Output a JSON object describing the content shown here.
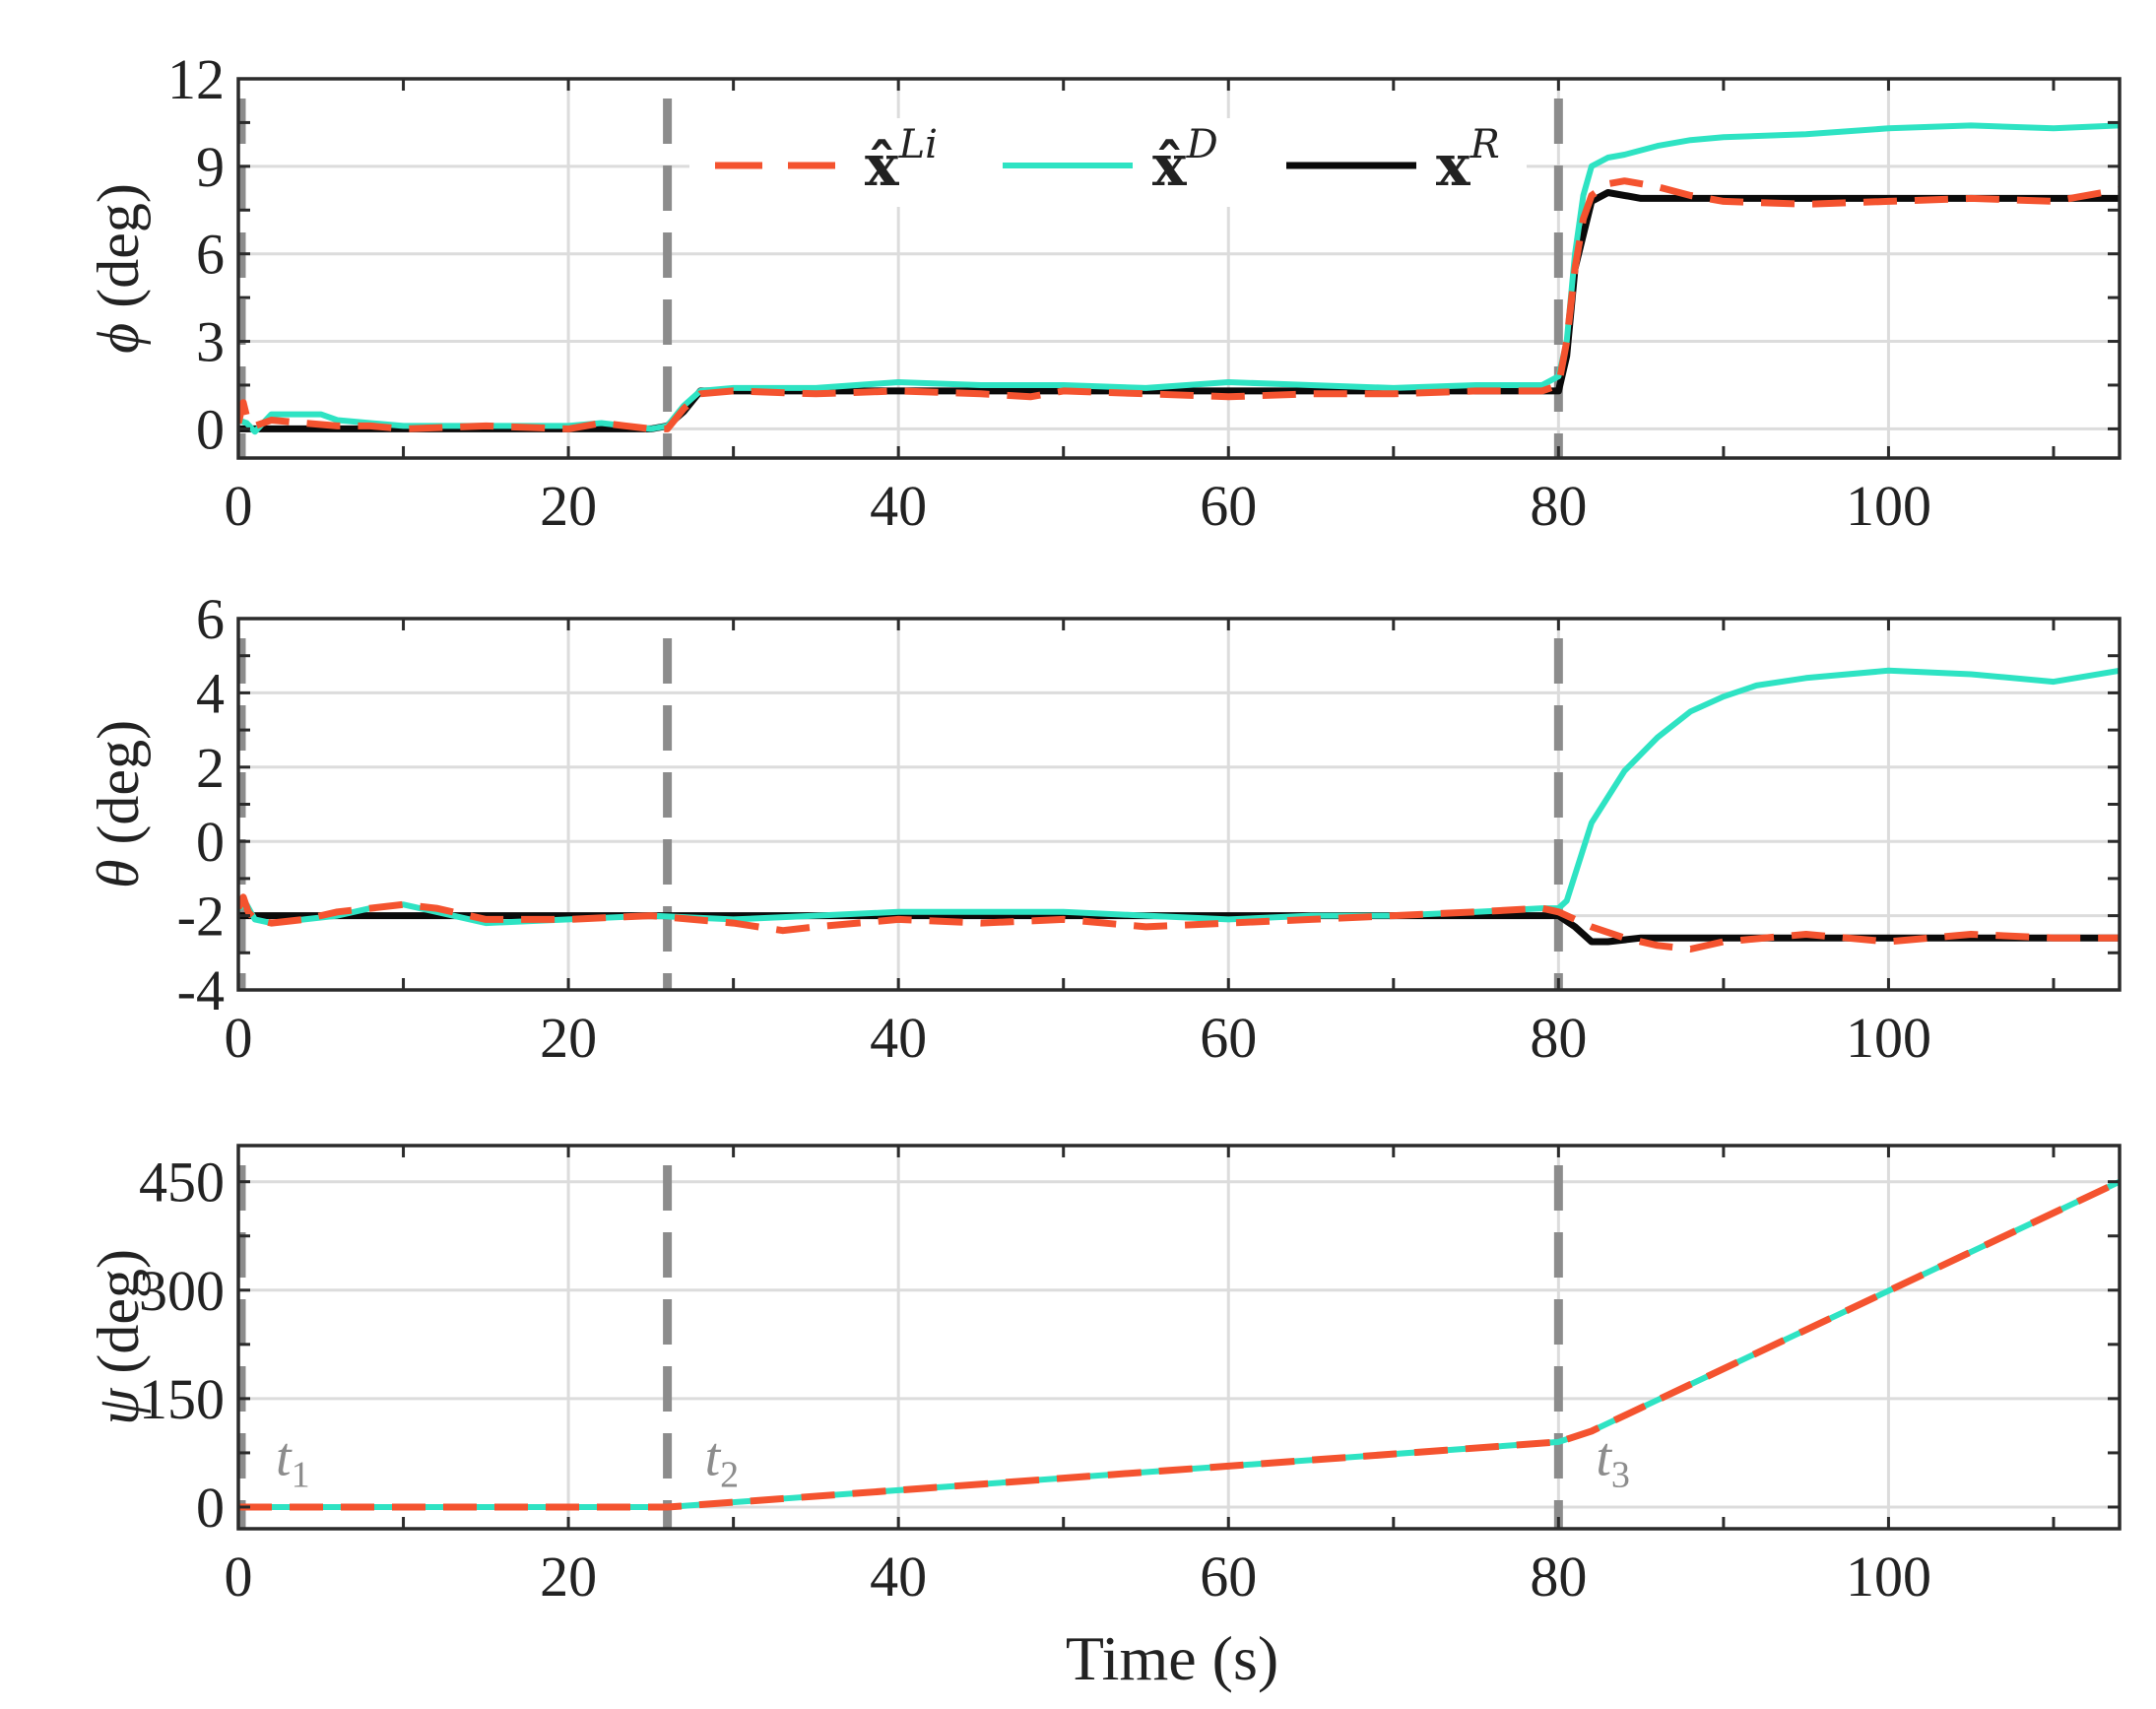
{
  "chart_data": [
    {
      "type": "line",
      "panel": "top",
      "ylabel_symbol": "ϕ",
      "ylabel_unit": "(deg)",
      "xlabel": "",
      "xlim": [
        0,
        114
      ],
      "ylim": [
        -1,
        12
      ],
      "xticks": [
        "0",
        "20",
        "40",
        "60",
        "80",
        "100"
      ],
      "xtick_values": [
        0,
        20,
        40,
        60,
        80,
        100
      ],
      "yticks": [
        "0",
        "3",
        "6",
        "9",
        "12"
      ],
      "ytick_values": [
        0,
        3,
        6,
        9,
        12
      ],
      "grid": true,
      "legend": {
        "placement": "top-center",
        "entries": [
          {
            "base": "x̂",
            "sup": "Li",
            "series": "xLi"
          },
          {
            "base": "x̂",
            "sup": "D",
            "series": "xD"
          },
          {
            "base": "x",
            "sup": "R",
            "series": "xR"
          }
        ]
      },
      "series": [
        {
          "name": "xR",
          "label": "x^R",
          "x": [
            0,
            25,
            26,
            27,
            28,
            80,
            80.5,
            81,
            82,
            83,
            85,
            90,
            114
          ],
          "y": [
            0,
            0,
            0.1,
            0.6,
            1.3,
            1.3,
            2.5,
            5.5,
            7.8,
            8.1,
            7.9,
            7.9,
            7.9
          ]
        },
        {
          "name": "xD",
          "label": "x̂^D",
          "x": [
            0,
            0.5,
            1,
            2,
            3,
            5,
            6,
            8,
            10,
            15,
            20,
            22,
            25,
            26,
            27,
            28,
            30,
            35,
            40,
            45,
            50,
            55,
            60,
            65,
            70,
            75,
            79,
            80,
            80.5,
            81,
            81.5,
            82,
            83,
            84,
            86,
            88,
            90,
            95,
            100,
            105,
            110,
            114
          ],
          "y": [
            0.3,
            0.2,
            -0.1,
            0.5,
            0.5,
            0.5,
            0.3,
            0.2,
            0.1,
            0.1,
            0.1,
            0.2,
            0.0,
            0.1,
            0.8,
            1.3,
            1.4,
            1.4,
            1.6,
            1.5,
            1.5,
            1.4,
            1.6,
            1.5,
            1.4,
            1.5,
            1.5,
            1.8,
            3,
            6,
            8,
            9.0,
            9.3,
            9.4,
            9.7,
            9.9,
            10.0,
            10.1,
            10.3,
            10.4,
            10.3,
            10.4
          ]
        },
        {
          "name": "xLi",
          "label": "x̂^Li",
          "x": [
            0,
            0.3,
            0.6,
            1,
            2,
            4,
            6,
            8,
            10,
            15,
            20,
            22,
            25,
            26,
            27,
            28,
            30,
            35,
            40,
            45,
            48,
            50,
            55,
            60,
            65,
            70,
            75,
            79,
            80,
            80.5,
            81,
            81.5,
            82,
            83,
            84,
            85,
            86,
            88,
            90,
            95,
            100,
            105,
            110,
            114
          ],
          "y": [
            0.2,
            0.9,
            0.2,
            0.1,
            0.3,
            0.2,
            0.1,
            0.1,
            0.0,
            0.1,
            0.0,
            0.2,
            0.0,
            0.0,
            0.7,
            1.2,
            1.3,
            1.2,
            1.3,
            1.2,
            1.1,
            1.3,
            1.2,
            1.1,
            1.2,
            1.2,
            1.3,
            1.3,
            1.5,
            3,
            5.5,
            7.2,
            8.0,
            8.4,
            8.5,
            8.4,
            8.3,
            8.0,
            7.8,
            7.7,
            7.8,
            7.9,
            7.8,
            8.2
          ]
        }
      ]
    },
    {
      "type": "line",
      "panel": "middle",
      "ylabel_symbol": "θ",
      "ylabel_unit": "(deg)",
      "xlabel": "",
      "xlim": [
        0,
        114
      ],
      "ylim": [
        -4,
        6
      ],
      "xticks": [
        "0",
        "20",
        "40",
        "60",
        "80",
        "100"
      ],
      "xtick_values": [
        0,
        20,
        40,
        60,
        80,
        100
      ],
      "yticks": [
        "-4",
        "-2",
        "0",
        "2",
        "4",
        "6"
      ],
      "ytick_values": [
        -4,
        -2,
        0,
        2,
        4,
        6
      ],
      "grid": true,
      "series": [
        {
          "name": "xR",
          "label": "x^R",
          "x": [
            0,
            80,
            81,
            82,
            83,
            85,
            88,
            114
          ],
          "y": [
            -2.0,
            -2.0,
            -2.3,
            -2.7,
            -2.7,
            -2.6,
            -2.6,
            -2.6
          ]
        },
        {
          "name": "xD",
          "label": "x̂^D",
          "x": [
            0,
            0.5,
            1,
            2,
            4,
            6,
            8,
            10,
            12,
            15,
            20,
            25,
            30,
            35,
            40,
            45,
            50,
            55,
            60,
            65,
            70,
            75,
            79,
            80,
            80.5,
            81,
            82,
            84,
            86,
            88,
            90,
            92,
            95,
            100,
            105,
            110,
            114
          ],
          "y": [
            -1.8,
            -1.7,
            -2.1,
            -2.2,
            -2.1,
            -2.0,
            -1.8,
            -1.7,
            -1.9,
            -2.2,
            -2.1,
            -2.0,
            -2.1,
            -2.0,
            -1.9,
            -1.9,
            -1.9,
            -2.0,
            -2.1,
            -2.0,
            -2.0,
            -1.9,
            -1.8,
            -1.8,
            -1.6,
            -0.9,
            0.5,
            1.9,
            2.8,
            3.5,
            3.9,
            4.2,
            4.4,
            4.6,
            4.5,
            4.3,
            4.6
          ]
        },
        {
          "name": "xLi",
          "label": "x̂^Li",
          "x": [
            0,
            0.3,
            0.6,
            1,
            2,
            4,
            6,
            8,
            10,
            12,
            15,
            20,
            25,
            30,
            33,
            35,
            40,
            45,
            50,
            55,
            60,
            65,
            70,
            75,
            79,
            80,
            81,
            82,
            84,
            86,
            88,
            90,
            95,
            100,
            105,
            110,
            114
          ],
          "y": [
            -1.8,
            -1.5,
            -1.9,
            -2.1,
            -2.2,
            -2.1,
            -1.9,
            -1.8,
            -1.7,
            -1.8,
            -2.1,
            -2.1,
            -2.0,
            -2.2,
            -2.4,
            -2.3,
            -2.1,
            -2.2,
            -2.1,
            -2.3,
            -2.2,
            -2.1,
            -2.0,
            -1.9,
            -1.8,
            -1.9,
            -2.1,
            -2.3,
            -2.6,
            -2.8,
            -2.9,
            -2.7,
            -2.5,
            -2.7,
            -2.5,
            -2.6,
            -2.6
          ]
        }
      ]
    },
    {
      "type": "line",
      "panel": "bottom",
      "ylabel_symbol": "ψ",
      "ylabel_unit": "(deg)",
      "xlabel": "Time (s)",
      "xlim": [
        0,
        114
      ],
      "ylim": [
        -30,
        500
      ],
      "xticks": [
        "0",
        "20",
        "40",
        "60",
        "80",
        "100"
      ],
      "xtick_values": [
        0,
        20,
        40,
        60,
        80,
        100
      ],
      "yticks": [
        "0",
        "150",
        "300",
        "450"
      ],
      "ytick_values": [
        0,
        150,
        300,
        450
      ],
      "grid": true,
      "series": [
        {
          "name": "xD",
          "label": "x̂^D",
          "x": [
            0,
            26,
            80,
            82,
            114
          ],
          "y": [
            0,
            0,
            90,
            105,
            450
          ]
        },
        {
          "name": "xLi",
          "label": "x̂^Li",
          "x": [
            0,
            26,
            80,
            82,
            114
          ],
          "y": [
            0,
            0,
            90,
            105,
            450
          ]
        }
      ]
    }
  ],
  "event_markers": {
    "x_values": [
      0,
      26,
      80
    ],
    "labels": [
      {
        "base": "t",
        "sub": "1",
        "x": 0,
        "y": 44
      },
      {
        "base": "t",
        "sub": "2",
        "x": 26,
        "y": 44
      },
      {
        "base": "t",
        "sub": "3",
        "x": 80,
        "y": 44
      }
    ]
  },
  "colors": {
    "xLi": "#f4532f",
    "xD": "#2ee3c3",
    "xR": "#0a0a0a",
    "marker": "#8c8c8c",
    "grid": "#dcdcdc",
    "axes": "#2b2b2b"
  }
}
